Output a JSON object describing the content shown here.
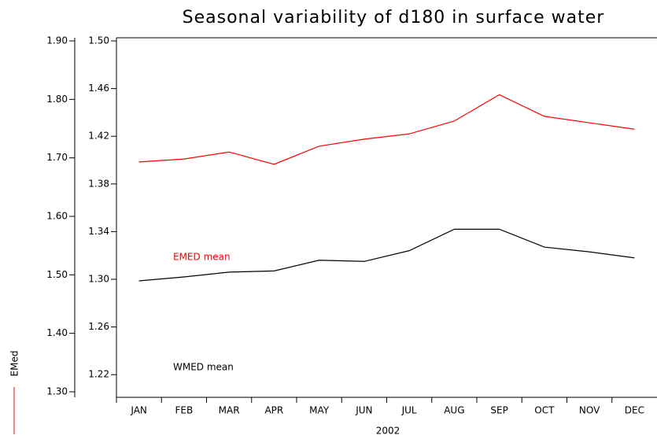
{
  "chart_data": {
    "type": "line",
    "title": "Seasonal variability of d180  in surface water",
    "xlabel": "2002",
    "ylabel": "EMed",
    "categories": [
      "JAN",
      "FEB",
      "MAR",
      "APR",
      "MAY",
      "JUN",
      "JUL",
      "AUG",
      "SEP",
      "OCT",
      "NOV",
      "DEC"
    ],
    "series": [
      {
        "name": "EMED mean",
        "color": "#ff0000",
        "values": [
          1.693,
          1.698,
          1.71,
          1.689,
          1.72,
          1.732,
          1.741,
          1.763,
          1.808,
          1.771,
          1.76,
          1.749
        ]
      },
      {
        "name": "WMED mean",
        "color": "#000000",
        "axis": "y2",
        "values": [
          1.2987,
          1.302,
          1.306,
          1.307,
          1.316,
          1.315,
          1.324,
          1.342,
          1.342,
          1.327,
          1.323,
          1.318
        ]
      }
    ],
    "ylim": [
      1.3,
      1.9
    ],
    "yticks": [
      {
        "value": 1.3,
        "label": "1.30"
      },
      {
        "value": 1.4,
        "label": "1.40"
      },
      {
        "value": 1.5,
        "label": "1.50"
      },
      {
        "value": 1.6,
        "label": "1.60"
      },
      {
        "value": 1.7,
        "label": "1.70"
      },
      {
        "value": 1.8,
        "label": "1.80"
      },
      {
        "value": 1.9,
        "label": "1.90"
      }
    ],
    "y2lim": [
      1.2,
      1.5
    ],
    "y2ticks": [
      1.22,
      1.26,
      {
        "value": 1.3,
        "label": "1.30"
      },
      1.34,
      1.38,
      1.42,
      1.46,
      {
        "value": 1.5,
        "label": "1.50"
      }
    ]
  }
}
